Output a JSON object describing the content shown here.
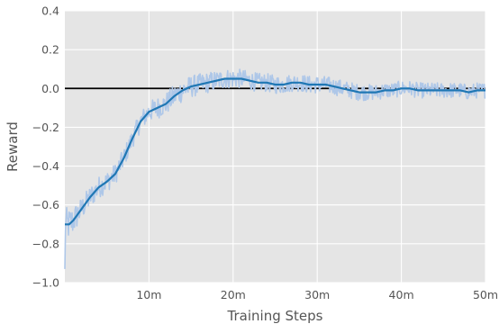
{
  "chart_data": {
    "type": "line",
    "xlabel": "Training Steps",
    "ylabel": "Reward",
    "xlim": [
      0,
      50
    ],
    "ylim": [
      -1.0,
      0.4
    ],
    "x_unit": "million steps",
    "x_ticks": [
      10,
      20,
      30,
      40,
      50
    ],
    "x_tick_labels": [
      "10m",
      "20m",
      "30m",
      "40m",
      "50m"
    ],
    "y_ticks": [
      -1.0,
      -0.8,
      -0.6,
      -0.4,
      -0.2,
      0.0,
      0.2,
      0.4
    ],
    "y_tick_labels": [
      "−1.0",
      "−0.8",
      "−0.6",
      "−0.4",
      "−0.2",
      "0.0",
      "0.2",
      "0.4"
    ],
    "grid": true,
    "reference_line_y": 0.0,
    "colors": {
      "background": "#e5e5e5",
      "grid": "#ffffff",
      "raw": "#aec7e8",
      "smoothed": "#1f77b4",
      "reference": "#000000"
    },
    "series": [
      {
        "role": "smoothed",
        "x": [
          0,
          0.5,
          1,
          2,
          3,
          4,
          5,
          6,
          7,
          8,
          9,
          10,
          11,
          12,
          13,
          14,
          15,
          16,
          17,
          18,
          19,
          20,
          21,
          22,
          23,
          24,
          25,
          26,
          27,
          28,
          29,
          30,
          31,
          32,
          33,
          34,
          35,
          36,
          37,
          38,
          39,
          40,
          41,
          42,
          43,
          44,
          45,
          46,
          47,
          48,
          49,
          50
        ],
        "y": [
          -0.7,
          -0.7,
          -0.68,
          -0.62,
          -0.56,
          -0.51,
          -0.48,
          -0.44,
          -0.36,
          -0.26,
          -0.17,
          -0.12,
          -0.1,
          -0.08,
          -0.04,
          -0.01,
          0.01,
          0.02,
          0.03,
          0.04,
          0.05,
          0.05,
          0.05,
          0.04,
          0.03,
          0.03,
          0.02,
          0.02,
          0.03,
          0.03,
          0.02,
          0.02,
          0.02,
          0.01,
          0.0,
          -0.01,
          -0.02,
          -0.02,
          -0.02,
          -0.01,
          -0.01,
          0.0,
          0.0,
          -0.01,
          -0.01,
          -0.01,
          -0.01,
          -0.01,
          -0.01,
          -0.02,
          -0.01,
          -0.01
        ]
      }
    ],
    "raw_noise": {
      "amplitude_by_x": [
        [
          0,
          0.09
        ],
        [
          2,
          0.06
        ],
        [
          8,
          0.05
        ],
        [
          13,
          0.06
        ],
        [
          20,
          0.05
        ],
        [
          30,
          0.045
        ],
        [
          40,
          0.04
        ],
        [
          50,
          0.04
        ]
      ]
    }
  }
}
